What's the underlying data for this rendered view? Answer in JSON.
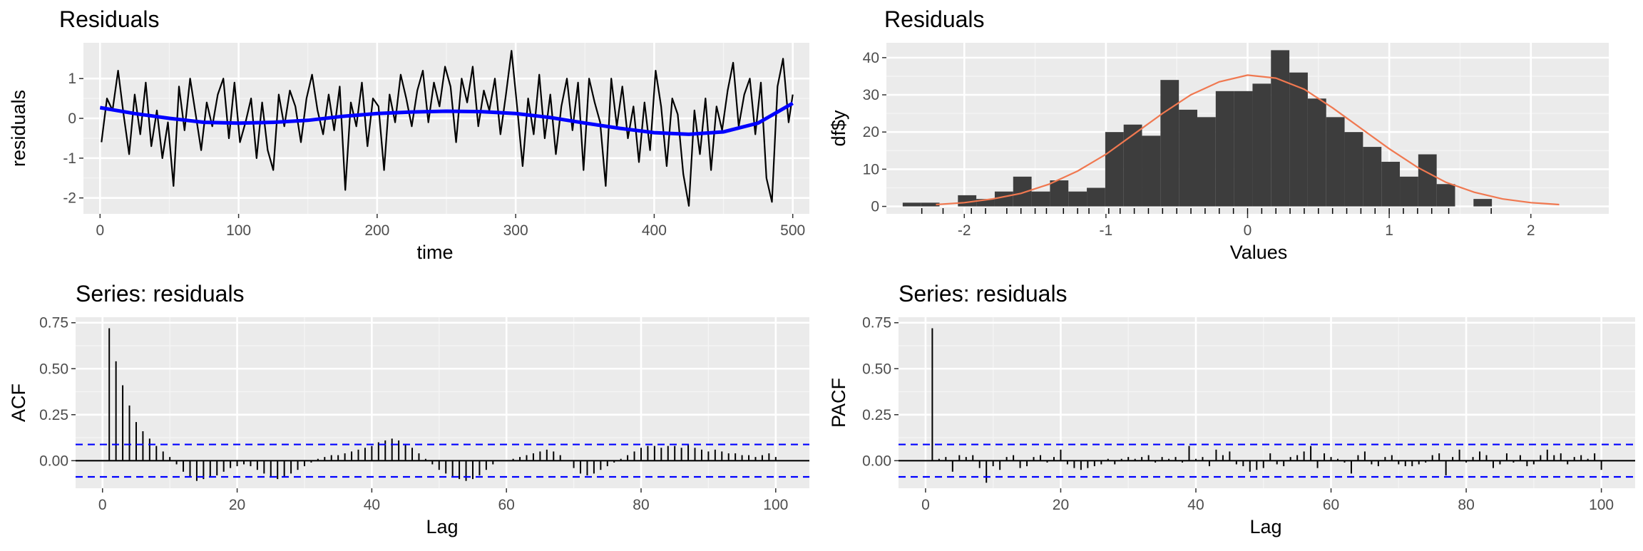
{
  "figure": {
    "panels": [
      {
        "title": "Residuals",
        "xlabel": "time",
        "ylabel": "residuals"
      },
      {
        "title": "Residuals",
        "xlabel": "Values",
        "ylabel": "df$y"
      },
      {
        "title": "Series: residuals",
        "xlabel": "Lag",
        "ylabel": "ACF"
      },
      {
        "title": "Series: residuals",
        "xlabel": "Lag",
        "ylabel": "PACF"
      }
    ]
  },
  "chart_data": [
    {
      "type": "line",
      "title": "Residuals",
      "xlabel": "time",
      "ylabel": "residuals",
      "xlim": [
        -12,
        512
      ],
      "ylim": [
        -2.4,
        1.9
      ],
      "xticks": [
        0,
        100,
        200,
        300,
        400,
        500
      ],
      "yticks": [
        -2,
        -1,
        0,
        1
      ],
      "grid": true,
      "colors": {
        "series": "#000000",
        "smooth": "#0000ff",
        "panel": "#ebebeb"
      },
      "series": [
        {
          "x": [
            1,
            5,
            9,
            13,
            17,
            21,
            25,
            29,
            33,
            37,
            41,
            45,
            49,
            53,
            57,
            61,
            65,
            69,
            73,
            77,
            81,
            85,
            89,
            93,
            97,
            101,
            105,
            109,
            113,
            117,
            121,
            125,
            129,
            133,
            137,
            141,
            145,
            149,
            153,
            157,
            161,
            165,
            169,
            173,
            177,
            181,
            185,
            189,
            193,
            197,
            201,
            205,
            209,
            213,
            217,
            221,
            225,
            229,
            233,
            237,
            241,
            245,
            249,
            253,
            257,
            261,
            265,
            269,
            273,
            277,
            281,
            285,
            289,
            293,
            297,
            301,
            305,
            309,
            313,
            317,
            321,
            325,
            329,
            333,
            337,
            341,
            345,
            349,
            353,
            357,
            361,
            365,
            369,
            373,
            377,
            381,
            385,
            389,
            393,
            397,
            401,
            405,
            409,
            413,
            417,
            421,
            425,
            429,
            433,
            437,
            441,
            445,
            449,
            453,
            457,
            461,
            465,
            469,
            473,
            477,
            481,
            485,
            489,
            493,
            497,
            500
          ],
          "y": [
            -0.6,
            0.5,
            0.2,
            1.2,
            0.1,
            -0.9,
            0.6,
            -0.4,
            0.9,
            -0.7,
            0.2,
            -1.0,
            -0.1,
            -1.7,
            0.8,
            -0.3,
            1.0,
            0.1,
            -0.8,
            0.4,
            -0.2,
            0.6,
            1.0,
            -0.5,
            0.9,
            -0.6,
            -0.1,
            0.5,
            -1.0,
            0.4,
            -0.8,
            -1.3,
            0.6,
            -0.2,
            0.7,
            0.3,
            -0.6,
            0.5,
            1.1,
            0.2,
            -0.4,
            0.6,
            -0.3,
            0.8,
            -1.8,
            0.4,
            -0.2,
            0.9,
            -0.7,
            0.5,
            0.3,
            -1.3,
            0.6,
            -0.1,
            1.1,
            0.5,
            -0.2,
            0.7,
            1.2,
            -0.1,
            0.9,
            0.3,
            1.3,
            0.8,
            -0.6,
            1.0,
            0.4,
            1.3,
            -0.2,
            0.7,
            0.2,
            1.0,
            -0.4,
            0.6,
            1.7,
            0.3,
            -1.2,
            0.5,
            -0.4,
            1.1,
            -0.5,
            0.6,
            -0.9,
            0.3,
            1.0,
            -0.3,
            0.9,
            -1.3,
            1.0,
            0.4,
            -0.1,
            -1.7,
            1.0,
            -0.2,
            0.8,
            -0.5,
            0.3,
            -1.1,
            0.4,
            -0.8,
            1.2,
            0.3,
            -1.2,
            0.5,
            0.1,
            -1.4,
            -2.2,
            0.2,
            -0.9,
            0.5,
            -1.3,
            0.3,
            -0.3,
            0.7,
            1.4,
            -0.2,
            0.6,
            1.0,
            -0.4,
            0.9,
            -1.5,
            -2.1,
            0.8,
            1.5,
            -0.1,
            0.6
          ]
        },
        {
          "name": "",
          "x": [
            0,
            25,
            50,
            75,
            100,
            125,
            150,
            175,
            200,
            225,
            250,
            275,
            300,
            325,
            350,
            375,
            400,
            425,
            450,
            475,
            500
          ],
          "y": [
            0.27,
            0.12,
            0.0,
            -0.1,
            -0.12,
            -0.1,
            -0.05,
            0.05,
            0.12,
            0.16,
            0.18,
            0.17,
            0.12,
            0.02,
            -0.12,
            -0.25,
            -0.36,
            -0.4,
            -0.34,
            -0.12,
            0.38
          ]
        }
      ]
    },
    {
      "type": "bar",
      "title": "Residuals",
      "xlabel": "Values",
      "ylabel": "df$y",
      "xlim": [
        -2.55,
        2.55
      ],
      "ylim": [
        -2,
        44
      ],
      "xticks": [
        -2,
        -1,
        0,
        1,
        2
      ],
      "yticks": [
        0,
        10,
        20,
        30,
        40
      ],
      "grid": true,
      "colors": {
        "bars": "#3d3d3d",
        "density": "#f07850",
        "rug": "#000000",
        "panel": "#ebebeb"
      },
      "bin_centers": [
        -2.37,
        -2.24,
        -2.11,
        -1.98,
        -1.85,
        -1.72,
        -1.59,
        -1.46,
        -1.33,
        -1.2,
        -1.07,
        -0.94,
        -0.81,
        -0.68,
        -0.55,
        -0.42,
        -0.29,
        -0.16,
        -0.03,
        0.1,
        0.23,
        0.36,
        0.49,
        0.62,
        0.75,
        0.88,
        1.01,
        1.14,
        1.27,
        1.4,
        1.53,
        1.66,
        1.79
      ],
      "values": [
        1,
        1,
        0,
        3,
        2,
        4,
        8,
        4,
        7,
        4,
        5,
        20,
        22,
        19,
        34,
        26,
        24,
        31,
        31,
        33,
        42,
        36,
        29,
        24,
        20,
        16,
        12,
        8,
        14,
        6,
        0,
        2,
        0
      ],
      "density_curve": {
        "x": [
          -2.2,
          -2.0,
          -1.8,
          -1.6,
          -1.4,
          -1.2,
          -1.0,
          -0.8,
          -0.6,
          -0.4,
          -0.2,
          0.0,
          0.2,
          0.4,
          0.6,
          0.8,
          1.0,
          1.2,
          1.4,
          1.6,
          1.8,
          2.0,
          2.2
        ],
        "y": [
          0.5,
          1.0,
          2.0,
          3.5,
          6.0,
          9.5,
          14.0,
          19.5,
          25.0,
          30.0,
          33.5,
          35.3,
          34.5,
          31.5,
          26.5,
          21.0,
          15.5,
          10.5,
          6.5,
          3.8,
          2.0,
          1.0,
          0.5
        ]
      },
      "rug": [
        -2.3,
        -2.15,
        -1.95,
        -1.85,
        -1.7,
        -1.6,
        -1.5,
        -1.42,
        -1.3,
        -1.2,
        -1.12,
        -0.98,
        -0.9,
        -0.8,
        -0.7,
        -0.6,
        -0.5,
        -0.4,
        -0.3,
        -0.2,
        -0.1,
        0.0,
        0.1,
        0.2,
        0.3,
        0.4,
        0.5,
        0.6,
        0.7,
        0.8,
        0.9,
        1.0,
        1.1,
        1.2,
        1.3,
        1.42,
        1.72
      ]
    },
    {
      "type": "bar",
      "title": "Series: residuals",
      "xlabel": "Lag",
      "ylabel": "ACF",
      "xlim": [
        -4,
        105
      ],
      "ylim": [
        -0.15,
        0.78
      ],
      "xticks": [
        0,
        20,
        40,
        60,
        80,
        100
      ],
      "yticks": [
        0.0,
        0.25,
        0.5,
        0.75
      ],
      "ytick_labels": [
        "0.00",
        "0.25",
        "0.50",
        "0.75"
      ],
      "grid": true,
      "confidence_bound": 0.088,
      "colors": {
        "bars": "#000000",
        "bounds": "#0000ff",
        "panel": "#ebebeb"
      },
      "lags": [
        1,
        2,
        3,
        4,
        5,
        6,
        7,
        8,
        9,
        10,
        11,
        12,
        13,
        14,
        15,
        16,
        17,
        18,
        19,
        20,
        21,
        22,
        23,
        24,
        25,
        26,
        27,
        28,
        29,
        30,
        31,
        32,
        33,
        34,
        35,
        36,
        37,
        38,
        39,
        40,
        41,
        42,
        43,
        44,
        45,
        46,
        47,
        48,
        49,
        50,
        51,
        52,
        53,
        54,
        55,
        56,
        57,
        58,
        59,
        60,
        61,
        62,
        63,
        64,
        65,
        66,
        67,
        68,
        69,
        70,
        71,
        72,
        73,
        74,
        75,
        76,
        77,
        78,
        79,
        80,
        81,
        82,
        83,
        84,
        85,
        86,
        87,
        88,
        89,
        90,
        91,
        92,
        93,
        94,
        95,
        96,
        97,
        98,
        99,
        100
      ],
      "values": [
        0.72,
        0.54,
        0.41,
        0.3,
        0.21,
        0.16,
        0.12,
        0.08,
        0.05,
        0.02,
        -0.02,
        -0.06,
        -0.09,
        -0.11,
        -0.1,
        -0.09,
        -0.08,
        -0.06,
        -0.04,
        -0.03,
        -0.02,
        -0.03,
        -0.05,
        -0.07,
        -0.09,
        -0.1,
        -0.09,
        -0.07,
        -0.05,
        -0.03,
        -0.01,
        0.01,
        0.02,
        0.03,
        0.03,
        0.04,
        0.05,
        0.06,
        0.07,
        0.08,
        0.1,
        0.11,
        0.12,
        0.11,
        0.09,
        0.07,
        0.04,
        0.01,
        -0.02,
        -0.05,
        -0.07,
        -0.09,
        -0.1,
        -0.11,
        -0.1,
        -0.08,
        -0.05,
        -0.02,
        0.0,
        0.0,
        0.01,
        0.02,
        0.03,
        0.04,
        0.05,
        0.06,
        0.05,
        0.03,
        0.0,
        -0.04,
        -0.07,
        -0.08,
        -0.07,
        -0.05,
        -0.03,
        -0.01,
        0.01,
        0.03,
        0.05,
        0.07,
        0.08,
        0.08,
        0.07,
        0.08,
        0.08,
        0.07,
        0.09,
        0.07,
        0.06,
        0.05,
        0.06,
        0.05,
        0.04,
        0.04,
        0.03,
        0.03,
        0.02,
        0.03,
        0.04,
        0.02
      ]
    },
    {
      "type": "bar",
      "title": "Series: residuals",
      "xlabel": "Lag",
      "ylabel": "PACF",
      "xlim": [
        -4,
        105
      ],
      "ylim": [
        -0.15,
        0.78
      ],
      "xticks": [
        0,
        20,
        40,
        60,
        80,
        100
      ],
      "yticks": [
        0.0,
        0.25,
        0.5,
        0.75
      ],
      "ytick_labels": [
        "0.00",
        "0.25",
        "0.50",
        "0.75"
      ],
      "grid": true,
      "confidence_bound": 0.088,
      "colors": {
        "bars": "#000000",
        "bounds": "#0000ff",
        "panel": "#ebebeb"
      },
      "lags": [
        1,
        2,
        3,
        4,
        5,
        6,
        7,
        8,
        9,
        10,
        11,
        12,
        13,
        14,
        15,
        16,
        17,
        18,
        19,
        20,
        21,
        22,
        23,
        24,
        25,
        26,
        27,
        28,
        29,
        30,
        31,
        32,
        33,
        34,
        35,
        36,
        37,
        38,
        39,
        40,
        41,
        42,
        43,
        44,
        45,
        46,
        47,
        48,
        49,
        50,
        51,
        52,
        53,
        54,
        55,
        56,
        57,
        58,
        59,
        60,
        61,
        62,
        63,
        64,
        65,
        66,
        67,
        68,
        69,
        70,
        71,
        72,
        73,
        74,
        75,
        76,
        77,
        78,
        79,
        80,
        81,
        82,
        83,
        84,
        85,
        86,
        87,
        88,
        89,
        90,
        91,
        92,
        93,
        94,
        95,
        96,
        97,
        98,
        99,
        100
      ],
      "values": [
        0.72,
        0.01,
        0.02,
        -0.06,
        0.03,
        0.02,
        0.03,
        -0.04,
        -0.12,
        -0.03,
        -0.05,
        0.02,
        0.03,
        -0.04,
        -0.03,
        0.02,
        0.03,
        -0.01,
        0.02,
        0.06,
        -0.02,
        -0.04,
        -0.05,
        -0.04,
        -0.03,
        -0.02,
        0.01,
        -0.02,
        0.01,
        0.02,
        0.01,
        0.02,
        0.03,
        -0.01,
        0.02,
        0.01,
        0.02,
        -0.01,
        0.08,
        0.01,
        0.02,
        -0.03,
        0.06,
        0.03,
        0.05,
        -0.02,
        -0.03,
        -0.06,
        -0.05,
        -0.04,
        0.04,
        -0.02,
        -0.03,
        0.02,
        0.03,
        0.05,
        0.08,
        -0.04,
        0.04,
        0.02,
        0.01,
        -0.01,
        -0.07,
        0.03,
        0.05,
        -0.02,
        -0.03,
        0.02,
        0.03,
        -0.02,
        -0.03,
        -0.03,
        -0.02,
        -0.01,
        0.03,
        0.04,
        -0.08,
        0.02,
        0.06,
        -0.01,
        0.02,
        0.05,
        0.03,
        -0.04,
        -0.02,
        0.04,
        -0.01,
        0.03,
        -0.03,
        -0.02,
        0.03,
        0.06,
        0.03,
        0.04,
        -0.02,
        0.02,
        0.03,
        0.01,
        0.04,
        -0.05
      ]
    }
  ]
}
